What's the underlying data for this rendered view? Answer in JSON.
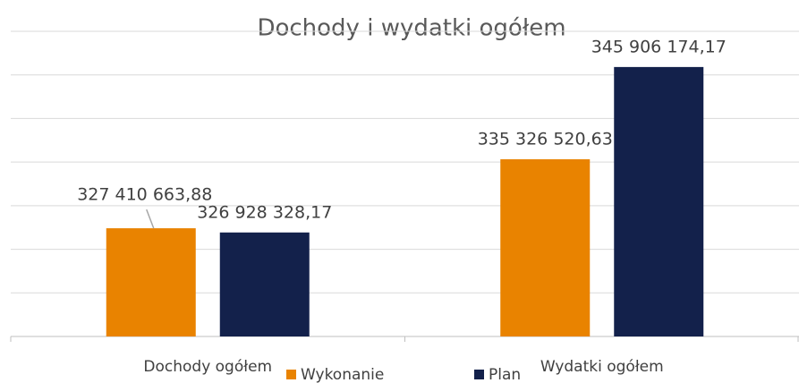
{
  "chart_data": {
    "type": "bar",
    "title": "Dochody i wydatki ogółem",
    "categories": [
      "Dochody ogółem",
      "Wydatki ogółem"
    ],
    "series": [
      {
        "name": "Wykonanie",
        "color": "#e98300",
        "values": [
          327410663.88,
          335326520.63
        ],
        "value_labels": [
          "327 410 663,88",
          "335 326 520,63"
        ]
      },
      {
        "name": "Plan",
        "color": "#13214b",
        "values": [
          326928328.17,
          345906174.17
        ],
        "value_labels": [
          "326 928 328,17",
          "345 906 174,17"
        ]
      }
    ],
    "ylim": [
      315000000,
      350000000
    ],
    "yticks": [
      315000000,
      320000000,
      325000000,
      330000000,
      335000000,
      340000000,
      345000000,
      350000000
    ],
    "grid": true,
    "legend": "bottom"
  }
}
